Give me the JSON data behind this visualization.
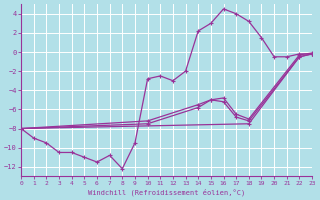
{
  "xlabel": "Windchill (Refroidissement éolien,°C)",
  "bg_color": "#b2e0e8",
  "grid_color": "#d0eaee",
  "line_color": "#993399",
  "xlim": [
    0,
    23
  ],
  "ylim": [
    -13,
    5
  ],
  "xticks": [
    0,
    1,
    2,
    3,
    4,
    5,
    6,
    7,
    8,
    9,
    10,
    11,
    12,
    13,
    14,
    15,
    16,
    17,
    18,
    19,
    20,
    21,
    22,
    23
  ],
  "yticks": [
    -12,
    -10,
    -8,
    -6,
    -4,
    -2,
    0,
    2,
    4
  ],
  "line1_x": [
    0,
    1,
    2,
    3,
    4,
    5,
    6,
    7,
    8,
    9,
    10,
    11,
    12,
    13,
    14,
    15,
    16,
    17,
    18,
    19,
    20,
    21,
    22,
    23
  ],
  "line1_y": [
    -8.0,
    -9.0,
    -9.5,
    -10.5,
    -10.5,
    -11.0,
    -11.5,
    -10.8,
    -12.2,
    -9.5,
    -2.8,
    -2.5,
    -3.0,
    -2.0,
    2.2,
    3.0,
    4.5,
    4.0,
    3.2,
    1.5,
    -0.5,
    -0.5,
    -0.2,
    -0.2
  ],
  "line2_x": [
    0,
    10,
    14,
    15,
    16,
    17,
    18,
    22,
    23
  ],
  "line2_y": [
    -8.0,
    -7.5,
    -5.8,
    -5.0,
    -5.2,
    -6.8,
    -7.2,
    -0.5,
    -0.2
  ],
  "line3_x": [
    0,
    10,
    14,
    15,
    16,
    17,
    18,
    22,
    23
  ],
  "line3_y": [
    -8.0,
    -7.2,
    -5.5,
    -5.0,
    -4.8,
    -6.5,
    -7.0,
    -0.3,
    -0.1
  ],
  "line4_x": [
    0,
    18,
    22,
    23
  ],
  "line4_y": [
    -8.0,
    -7.5,
    -0.5,
    -0.2
  ]
}
